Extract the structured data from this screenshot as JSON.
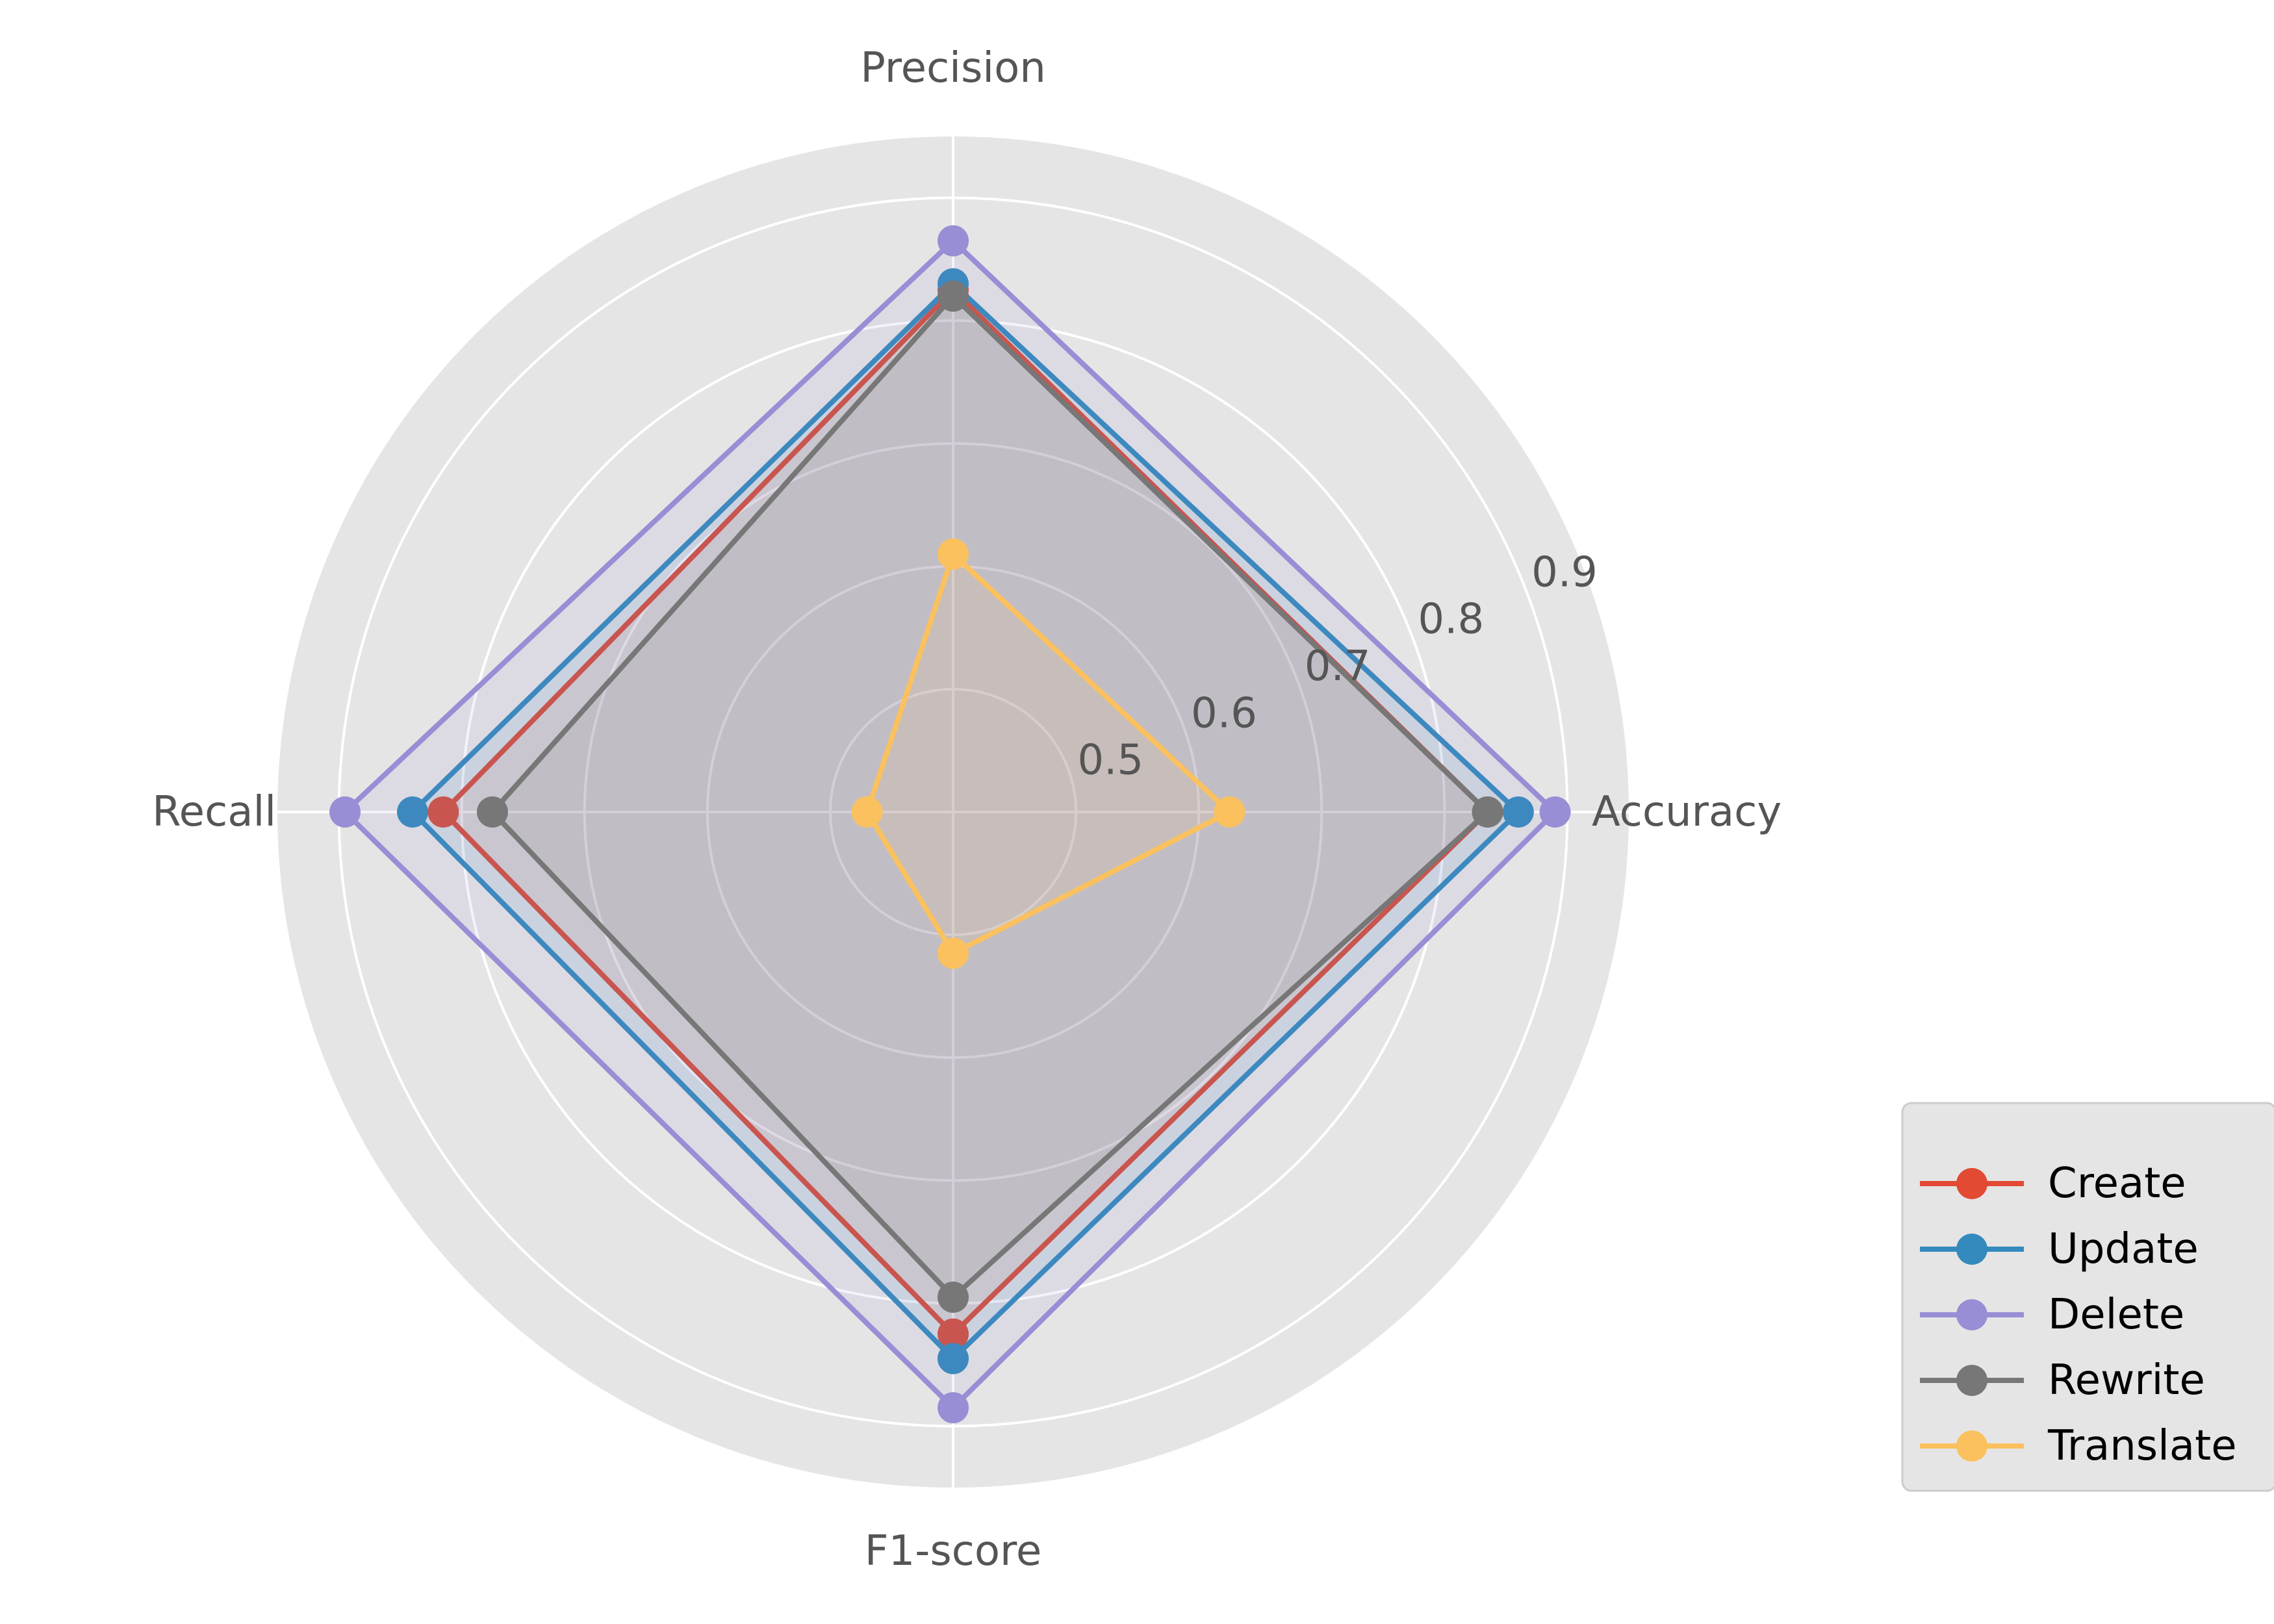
{
  "chart_data": {
    "type": "radar",
    "axes": [
      "Accuracy",
      "Precision",
      "Recall",
      "F1-score"
    ],
    "rlim": [
      0.4,
      0.95
    ],
    "ticks": [
      "0.5",
      "0.6",
      "0.7",
      "0.8",
      "0.9"
    ],
    "tick_values": [
      0.5,
      0.6,
      0.7,
      0.8,
      0.9
    ],
    "grid": true,
    "legend_position": "bottom-right",
    "series": [
      {
        "name": "Create",
        "color": "#E24A33",
        "values": [
          0.835,
          0.825,
          0.815,
          0.825
        ]
      },
      {
        "name": "Update",
        "color": "#348ABD",
        "values": [
          0.86,
          0.83,
          0.84,
          0.845
        ]
      },
      {
        "name": "Delete",
        "color": "#988ED5",
        "values": [
          0.89,
          0.865,
          0.895,
          0.885
        ]
      },
      {
        "name": "Rewrite",
        "color": "#777777",
        "values": [
          0.835,
          0.82,
          0.775,
          0.795
        ]
      },
      {
        "name": "Translate",
        "color": "#FBC15E",
        "values": [
          0.625,
          0.61,
          0.47,
          0.515
        ]
      }
    ]
  }
}
